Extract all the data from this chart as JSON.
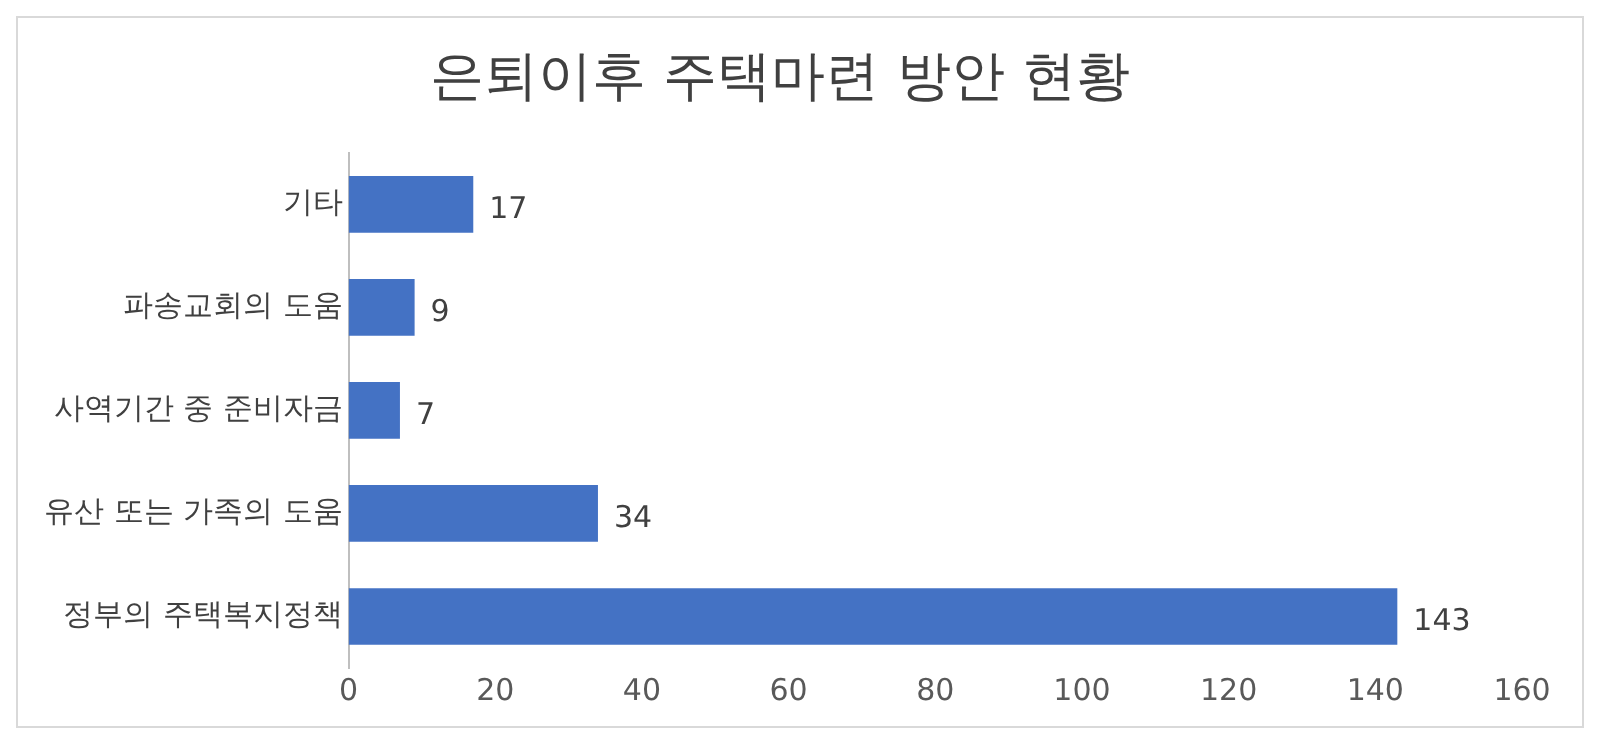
{
  "chart_data": {
    "type": "bar",
    "orientation": "horizontal",
    "title": "은퇴이후 주택마련 방안 현황",
    "categories": [
      "기타",
      "파송교회의 도움",
      "사역기간 중 준비자금",
      "유산 또는 가족의 도움",
      "정부의 주택복지정책"
    ],
    "values": [
      17,
      9,
      7,
      34,
      143
    ],
    "color": "#4472c4",
    "xlim": [
      0,
      160
    ],
    "xticks": [
      0,
      20,
      40,
      60,
      80,
      100,
      120,
      140,
      160
    ],
    "grid": false,
    "legend": false,
    "data_labels": true
  }
}
